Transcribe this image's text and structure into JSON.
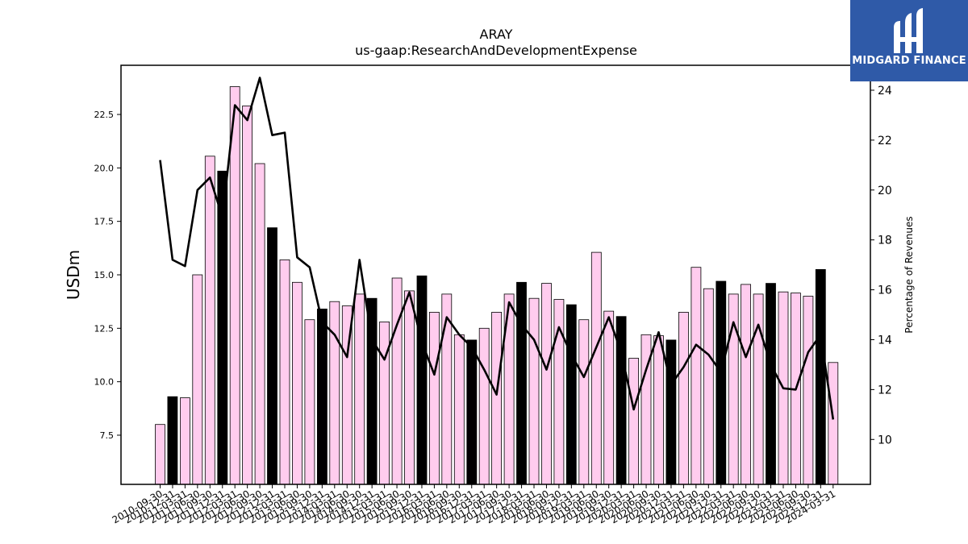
{
  "chart_data": {
    "type": "bar",
    "title": "ARAY",
    "subtitle": "us-gaap:ResearchAndDevelopmentExpense",
    "ylabel": "USDm",
    "y2label": "Percentage of Revenues",
    "ylim": [
      5.2,
      24.8
    ],
    "y2lim": [
      8.2,
      25.0
    ],
    "yticks": [
      "7.5",
      "10.0",
      "12.5",
      "15.0",
      "17.5",
      "20.0",
      "22.5"
    ],
    "y2ticks": [
      "10",
      "12",
      "14",
      "16",
      "18",
      "20",
      "22",
      "24"
    ],
    "categories": [
      "2010-09-30",
      "2010-12-31",
      "2011-03-31",
      "2011-06-30",
      "2011-09-30",
      "2011-12-31",
      "2012-03-31",
      "2012-06-30",
      "2012-09-30",
      "2012-12-31",
      "2013-03-31",
      "2013-06-30",
      "2013-09-30",
      "2013-12-31",
      "2014-03-31",
      "2014-06-30",
      "2014-09-30",
      "2014-12-31",
      "2015-03-31",
      "2015-06-30",
      "2015-09-30",
      "2015-12-31",
      "2016-03-31",
      "2016-06-30",
      "2016-09-30",
      "2016-12-31",
      "2017-03-31",
      "2017-06-30",
      "2017-09-30",
      "2017-12-31",
      "2018-03-31",
      "2018-06-30",
      "2018-09-30",
      "2018-12-31",
      "2019-03-31",
      "2019-06-30",
      "2019-09-30",
      "2019-12-31",
      "2020-03-31",
      "2020-06-30",
      "2020-09-30",
      "2020-12-31",
      "2021-03-31",
      "2021-06-30",
      "2021-09-30",
      "2021-12-31",
      "2022-03-31",
      "2022-06-30",
      "2022-09-30",
      "2022-12-31",
      "2023-03-31",
      "2023-06-30",
      "2023-09-30",
      "2023-12-31",
      "2024-03-31"
    ],
    "series": [
      {
        "type": "bar",
        "axis": "left",
        "values": [
          8.0,
          9.3,
          9.25,
          15.0,
          20.55,
          19.85,
          23.8,
          22.9,
          20.2,
          17.2,
          15.7,
          14.65,
          12.9,
          13.4,
          13.75,
          13.55,
          14.1,
          13.9,
          12.8,
          14.85,
          14.25,
          14.95,
          13.25,
          14.1,
          12.2,
          11.95,
          12.5,
          13.25,
          14.1,
          14.65,
          13.9,
          14.6,
          13.85,
          13.6,
          12.9,
          16.05,
          13.3,
          13.05,
          11.1,
          12.2,
          12.15,
          11.95,
          13.25,
          15.35,
          14.35,
          14.7,
          14.1,
          14.55,
          14.1,
          14.6,
          14.2,
          14.15,
          14.0,
          15.25,
          10.9
        ],
        "annual_quarters": [
          1,
          5,
          9,
          13,
          17,
          21,
          25,
          29,
          33,
          37,
          41,
          45,
          49,
          53
        ],
        "colors": {
          "quarter": "#ffccee",
          "annual": "#000000",
          "edge": "#000000"
        }
      },
      {
        "type": "line",
        "axis": "right",
        "values": [
          21.2,
          17.2,
          16.95,
          20.0,
          20.5,
          18.9,
          23.4,
          22.8,
          24.5,
          22.2,
          22.3,
          17.3,
          16.9,
          14.7,
          14.2,
          13.3,
          17.2,
          14.0,
          13.2,
          14.6,
          15.9,
          13.9,
          12.6,
          14.9,
          14.2,
          13.7,
          12.8,
          11.8,
          15.5,
          14.6,
          14.0,
          12.8,
          14.5,
          13.4,
          12.5,
          13.7,
          14.9,
          13.5,
          11.2,
          12.8,
          14.3,
          12.2,
          12.9,
          13.8,
          13.4,
          12.7,
          14.7,
          13.3,
          14.6,
          13.0,
          12.05,
          12.0,
          13.5,
          14.2,
          10.8
        ],
        "color": "#000000"
      }
    ]
  },
  "logo": {
    "text": "MIDGARD FINANCE"
  }
}
